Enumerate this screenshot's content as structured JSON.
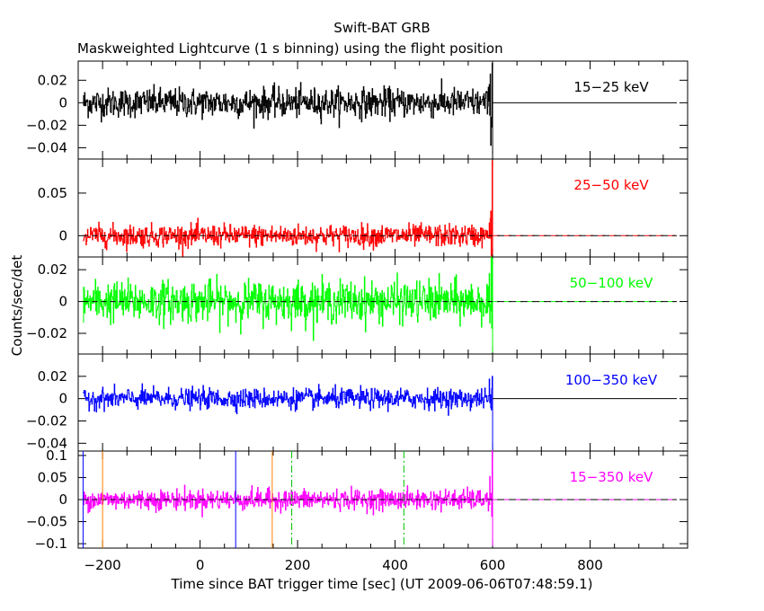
{
  "title": "Swift-BAT GRB",
  "subtitle": "Maskweighted Lightcurve (1 s binning) using the flight position",
  "chart_data": {
    "type": "line",
    "title": "Swift-BAT GRB",
    "subtitle": "Maskweighted Lightcurve (1 s binning) using the flight position",
    "xlabel": "Time since BAT trigger time [sec] (UT 2009-06-06T07:48:59.1)",
    "ylabel": "Counts/sec/det",
    "xlim": [
      -250,
      1000
    ],
    "x_ticks": [
      -200,
      0,
      200,
      400,
      600,
      800
    ],
    "x_tick_labels": [
      "−200",
      "0",
      "200",
      "400",
      "600",
      "800"
    ],
    "data_x_range": [
      -240,
      600
    ],
    "panels": [
      {
        "band": "15−25 keV",
        "color": "#000000",
        "ylim": [
          -0.05,
          0.037
        ],
        "y_ticks": [
          0.02,
          0,
          -0.02,
          -0.04
        ],
        "y_tick_labels": [
          "0.02",
          "0",
          "−0.02",
          "−0.04"
        ],
        "noise_sd": 0.0065,
        "dashed_baseline": false,
        "late_excursion": [
          0.035,
          -0.045
        ]
      },
      {
        "band": "25−50 keV",
        "color": "#ff0000",
        "ylim": [
          -0.025,
          0.09
        ],
        "y_ticks": [
          0.05,
          0
        ],
        "y_tick_labels": [
          "0.05",
          "0"
        ],
        "noise_sd": 0.0065,
        "dashed_baseline": true,
        "late_excursion": [
          0.088,
          -0.022
        ]
      },
      {
        "band": "50−100 keV",
        "color": "#00ff00",
        "ylim": [
          -0.033,
          0.028
        ],
        "y_ticks": [
          0.02,
          0,
          -0.02
        ],
        "y_tick_labels": [
          "0.02",
          "0",
          "−0.02"
        ],
        "noise_sd": 0.0065,
        "dashed_baseline": true,
        "late_excursion": [
          0.027,
          -0.032
        ]
      },
      {
        "band": "100−350 keV",
        "color": "#0000ff",
        "ylim": [
          -0.047,
          0.04
        ],
        "y_ticks": [
          0.02,
          0,
          -0.02,
          -0.04
        ],
        "y_tick_labels": [
          "0.02",
          "0",
          "−0.02",
          "−0.04"
        ],
        "noise_sd": 0.0045,
        "dashed_baseline": false,
        "late_excursion": [
          0.02,
          -0.046
        ]
      },
      {
        "band": "15−350 keV",
        "color": "#ff00ff",
        "ylim": [
          -0.11,
          0.11
        ],
        "y_ticks": [
          0.1,
          0.05,
          0,
          -0.05,
          -0.1
        ],
        "y_tick_labels": [
          "0.1",
          "0.05",
          "0",
          "−0.05",
          "−0.1"
        ],
        "noise_sd": 0.0115,
        "dashed_baseline": true,
        "late_excursion": [
          0.11,
          -0.105
        ]
      }
    ],
    "markers": [
      {
        "x": -240,
        "color": "#0000ff",
        "style": "solid"
      },
      {
        "x": -200,
        "color": "#ff8000",
        "style": "solid"
      },
      {
        "x": 73,
        "color": "#0000ff",
        "style": "solid"
      },
      {
        "x": 148,
        "color": "#ff8000",
        "style": "solid"
      },
      {
        "x": 188,
        "color": "#00c000",
        "style": "dashdot"
      },
      {
        "x": 418,
        "color": "#00c000",
        "style": "dashdot"
      }
    ]
  }
}
